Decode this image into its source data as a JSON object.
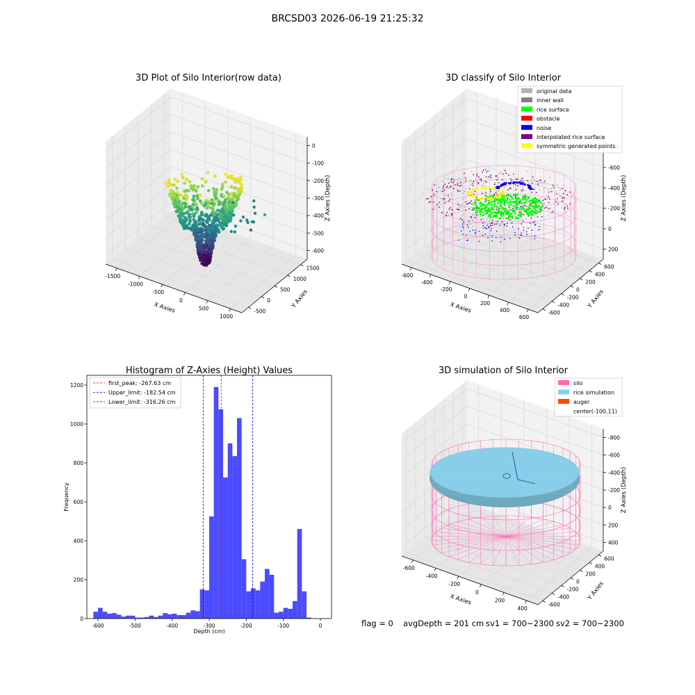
{
  "figure": {
    "suptitle": "BRCSD03 2026-06-19 21:25:32",
    "footer": {
      "flag": "flag = 0",
      "avg_depth": "avgDepth = 201 cm",
      "sv1": "sv1 = 700~2300",
      "sv2": "sv2 = 700~2300"
    }
  },
  "colors": {
    "hist_bar": "#4b4bff",
    "first_peak_line": "#ff0000",
    "limit_lines": "#0000cc",
    "original_data": "#b3b3b3",
    "inner_wall": "#808080",
    "rice_surface": "#00ff00",
    "obstacle": "#ff0000",
    "noise": "#0000ff",
    "interpolated_rice_surface": "#800080",
    "symmetric_generated_points": "#ffff00",
    "silo": "#ff69b4",
    "rice_simulation": "#87ceeb",
    "auger": "#ff4500"
  },
  "chart_data": [
    {
      "type": "scatter",
      "title": "3D Plot of Silo Interior(row data)",
      "xlabel": "X Axies",
      "ylabel": "Y Axies",
      "zlabel": "Z Axies (Depth)",
      "x_ticks": [
        "-1500",
        "-1000",
        "-500",
        "0",
        "500",
        "1000"
      ],
      "y_ticks": [
        "-500",
        "0",
        "500",
        "1000",
        "1500"
      ],
      "z_ticks": [
        "0",
        "-100",
        "-200",
        "-300",
        "-400",
        "-500",
        "-600"
      ],
      "xlim": [
        -1700,
        1200
      ],
      "ylim": [
        -700,
        1700
      ],
      "zlim": [
        -650,
        20
      ],
      "colormap": "viridis"
    },
    {
      "type": "scatter",
      "title": "3D classify of Silo Interior",
      "xlabel": "X Axies",
      "ylabel": "Y Axies",
      "zlabel": "Z Axies (Depth)",
      "x_ticks": [
        "-600",
        "-400",
        "-200",
        "0",
        "200",
        "400",
        "600"
      ],
      "y_ticks": [
        "-600",
        "-400",
        "-200",
        "0",
        "200",
        "400",
        "600"
      ],
      "z_ticks": [
        "200",
        "0",
        "-200",
        "-400",
        "-600",
        "-800"
      ],
      "legend": [
        "original data",
        "inner wall",
        "rice surface",
        "obstacle",
        "noise",
        "interpolated rice surface",
        "symmetric generated points"
      ],
      "legend_position": "upper right"
    },
    {
      "type": "bar",
      "title": "Histogram of Z-Axies (Height) Values",
      "xlabel": "Depth (cm)",
      "ylabel": "Frequency",
      "xlim": [
        -630,
        30
      ],
      "ylim": [
        0,
        1250
      ],
      "x_ticks": [
        -600,
        -500,
        -400,
        -300,
        -200,
        -100,
        0
      ],
      "y_ticks": [
        0,
        200,
        400,
        600,
        800,
        1000,
        1200
      ],
      "bin_width": 12.5,
      "bin_start": -612.5,
      "values": [
        35,
        55,
        35,
        25,
        28,
        20,
        10,
        15,
        15,
        5,
        5,
        8,
        15,
        8,
        15,
        28,
        22,
        25,
        18,
        18,
        30,
        42,
        38,
        150,
        145,
        525,
        1190,
        1075,
        725,
        900,
        835,
        1030,
        305,
        140,
        155,
        145,
        190,
        255,
        225,
        30,
        35,
        55,
        50,
        90,
        460,
        140,
        5
      ],
      "lines": [
        {
          "label": "first_peak: -267.63 cm",
          "value": -267.63,
          "style": "dashed",
          "color": "red"
        },
        {
          "label": "Upper_limit: -182.54 cm",
          "value": -182.54,
          "style": "dashed",
          "color": "blue"
        },
        {
          "label": "Lower_limit: -316.26 cm",
          "value": -316.26,
          "style": "dashed",
          "color": "blue"
        }
      ],
      "legend_position": "upper left"
    },
    {
      "type": "surface",
      "title": "3D simulation of Silo Interior",
      "xlabel": "X Axies",
      "ylabel": "Y Axies",
      "zlabel": "Z Axies (Depth)",
      "x_ticks": [
        "-600",
        "-400",
        "-200",
        "0",
        "200",
        "400"
      ],
      "y_ticks": [
        "-600",
        "-400",
        "-200",
        "0",
        "200",
        "400",
        "600"
      ],
      "z_ticks": [
        "400",
        "200",
        "0",
        "-200",
        "-400",
        "-600",
        "-800"
      ],
      "legend": [
        "silo",
        "rice simulation",
        "auger",
        "center(-100,11)"
      ],
      "legend_position": "upper right"
    }
  ]
}
